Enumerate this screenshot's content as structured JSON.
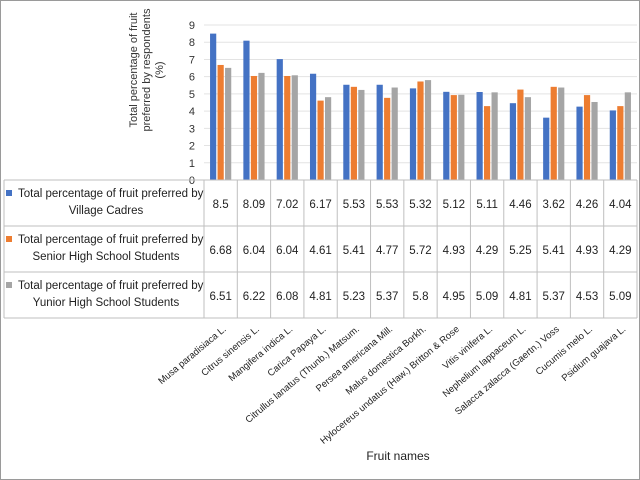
{
  "chart_data": {
    "type": "bar",
    "ylabel_lines": [
      "Total percentage of fruit",
      "preferred by respondents",
      "(%)"
    ],
    "xlabel": "Fruit names",
    "ylim": [
      0,
      9
    ],
    "yticks": [
      0,
      1,
      2,
      3,
      4,
      5,
      6,
      7,
      8,
      9
    ],
    "categories": [
      "Musa paradisiaca L.",
      "Citrus sinensis L.",
      "Mangifera indica L.",
      "Carica Papaya L.",
      "Citrullus lanatus (Thunb.) Matsum.",
      "Persea americana Mill.",
      "Malus domestica Borkh.",
      "Hylocereus undatus (Haw.) Britton & Rose",
      "Vitis vinifera L.",
      "Nephelium lappaceum L.",
      "Salacca zalacca (Gaertn.) Voss",
      "Cucumis melo L.",
      "Psidium guajava L."
    ],
    "series": [
      {
        "name_lines": [
          "Total percentage of fruit preferred by",
          "Village Cadres"
        ],
        "color": "#4472c4",
        "values": [
          8.5,
          8.09,
          7.02,
          6.17,
          5.53,
          5.53,
          5.32,
          5.12,
          5.11,
          4.46,
          3.62,
          4.26,
          4.04
        ]
      },
      {
        "name_lines": [
          "Total percentage of fruit preferred by",
          "Senior High School Students"
        ],
        "color": "#ed7d31",
        "values": [
          6.68,
          6.04,
          6.04,
          4.61,
          5.41,
          4.77,
          5.72,
          4.93,
          4.29,
          5.25,
          5.41,
          4.93,
          4.29
        ]
      },
      {
        "name_lines": [
          "Total percentage of fruit preferred by",
          "Yunior High School Students"
        ],
        "color": "#a5a5a5",
        "values": [
          6.51,
          6.22,
          6.08,
          4.81,
          5.23,
          5.37,
          5.8,
          4.95,
          5.09,
          4.81,
          5.37,
          4.53,
          5.09
        ]
      }
    ]
  }
}
